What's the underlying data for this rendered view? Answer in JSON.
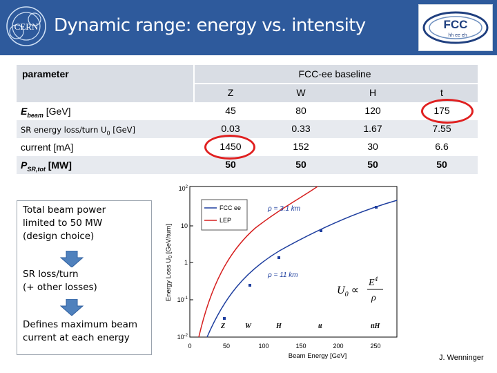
{
  "header": {
    "title": "Dynamic range: energy vs. intensity",
    "cern_logo_text": "CERN",
    "fcc_logo_text": "FCC",
    "fcc_logo_sub": "hh ee eh",
    "header_color": "#2e5a9c"
  },
  "table": {
    "parameter_header": "parameter",
    "baseline_header": "FCC-ee baseline",
    "columns": [
      "Z",
      "W",
      "H",
      "t"
    ],
    "rows": [
      {
        "label_main": "E",
        "label_sub": "beam",
        "label_tail": " [GeV]",
        "values": [
          "45",
          "80",
          "120",
          "175"
        ]
      },
      {
        "label_main": "SR energy loss/turn U",
        "label_sub": "0",
        "label_tail": " [GeV]",
        "values": [
          "0.03",
          "0.33",
          "1.67",
          "7.55"
        ]
      },
      {
        "label_main": "current [mA]",
        "label_sub": "",
        "label_tail": "",
        "values": [
          "1450",
          "152",
          "30",
          "6.6"
        ]
      },
      {
        "label_main": "P",
        "label_sub": "SR,tot",
        "label_tail": "  [MW]",
        "values": [
          "50",
          "50",
          "50",
          "50"
        ]
      }
    ]
  },
  "notes": {
    "box1": [
      "Total beam power",
      "limited to 50 MW",
      "(design choice)"
    ],
    "box2": [
      "SR loss/turn",
      "(+ other losses)"
    ],
    "box3": [
      "Defines maximum beam",
      "current at each energy"
    ],
    "arrow_color": "#4f81bd"
  },
  "plot": {
    "ylabel": "Energy Loss U",
    "ylabel_sub": "0",
    "ylabel_tail": " [GeV/turn]",
    "xlabel": "Beam Energy [GeV]",
    "xticks": [
      "0",
      "50",
      "100",
      "150",
      "200",
      "250"
    ],
    "yticks": [
      "10",
      "10",
      "1",
      "10",
      "10"
    ],
    "ytick_exp": [
      "2",
      "",
      "",
      "-1",
      "-2"
    ],
    "legend": [
      "FCC ee",
      "LEP"
    ],
    "rho1": "ρ = 3.1 km",
    "rho2": "ρ = 11 km",
    "formula_lhs": "U",
    "formula_sub": "0",
    "formula_mid": "∝",
    "formula_num": "E",
    "formula_exp": "4",
    "formula_den": "ρ",
    "markers": [
      "Z",
      "W",
      "H",
      "tt",
      "ttH"
    ],
    "fcc_color": "#1f3f9f",
    "lep_color": "#d62020"
  },
  "credit": "J. Wenninger"
}
